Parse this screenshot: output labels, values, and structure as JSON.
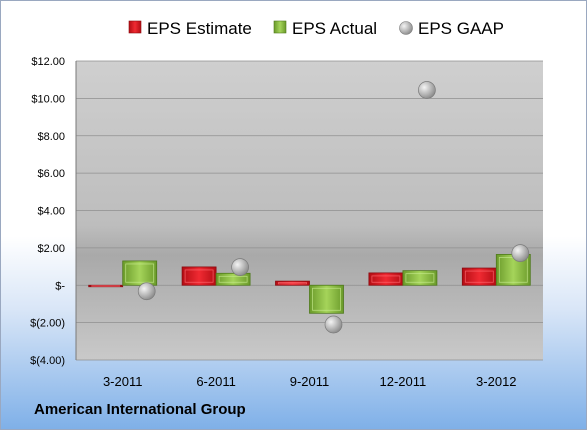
{
  "chart_data": {
    "type": "bar",
    "categories": [
      "3-2011",
      "6-2011",
      "9-2011",
      "12-2011",
      "3-2012"
    ],
    "series": [
      {
        "name": "EPS Estimate",
        "type": "bar",
        "values": [
          -0.05,
          0.98,
          0.22,
          0.66,
          0.92
        ]
      },
      {
        "name": "EPS Actual",
        "type": "bar",
        "values": [
          1.3,
          0.64,
          -1.5,
          0.78,
          1.65
        ]
      },
      {
        "name": "EPS GAAP",
        "type": "scatter",
        "values": [
          -0.32,
          0.97,
          -2.1,
          10.45,
          1.72
        ]
      }
    ],
    "ylim": [
      -4,
      12
    ],
    "yticks": [
      "$(4.00)",
      "$(2.00)",
      "$-",
      "$2.00",
      "$4.00",
      "$6.00",
      "$8.00",
      "$10.00",
      "$12.00"
    ],
    "grid": true,
    "legend_position": "top"
  },
  "footer": {
    "company": "American International Group"
  },
  "colors": {
    "estimate": "#e0202a",
    "actual": "#8cc63f",
    "gaap": "#b8b8b8",
    "plot_area": "#c0c0c0"
  }
}
